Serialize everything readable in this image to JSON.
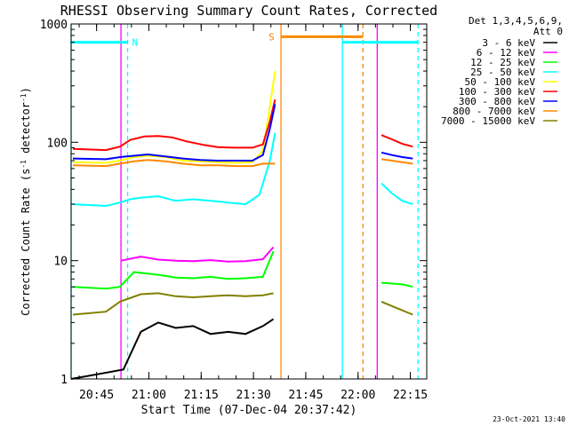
{
  "chart_data": {
    "type": "line",
    "title": "RHESSI Observing Summary Count Rates, Corrected",
    "xlabel": "Start Time (07-Dec-04 20:37:42)",
    "ylabel": "Corrected Count Rate (s⁻¹ detector⁻¹)",
    "ylabel_main": "Corrected Count Rate (s",
    "ylabel_sup1": "-1",
    "ylabel_mid": " detector",
    "ylabel_sup2": "-1",
    "ylabel_end": ")",
    "yscale": "log",
    "ylim": [
      1,
      1000
    ],
    "x_unit": "minutes after 20:37:42",
    "xlim": [
      0,
      102
    ],
    "xticks": [
      {
        "t": 7.3,
        "label": "20:45"
      },
      {
        "t": 22.3,
        "label": "21:00"
      },
      {
        "t": 37.3,
        "label": "21:15"
      },
      {
        "t": 52.3,
        "label": "21:30"
      },
      {
        "t": 67.3,
        "label": "21:45"
      },
      {
        "t": 82.3,
        "label": "22:00"
      },
      {
        "t": 97.3,
        "label": "22:15"
      }
    ],
    "yticks": [
      {
        "v": 1,
        "label": "1"
      },
      {
        "v": 10,
        "label": "10"
      },
      {
        "v": 100,
        "label": "100"
      },
      {
        "v": 1000,
        "label": "1000"
      }
    ],
    "legend_header": [
      "Det 1,3,4,5,6,9,",
      "Att 0"
    ],
    "legend_position": "right",
    "series": [
      {
        "name": "3 - 6 keV",
        "color": "#000000",
        "points": [
          [
            0,
            1
          ],
          [
            15,
            1.2
          ],
          [
            20,
            2.5
          ],
          [
            25,
            3
          ],
          [
            30,
            2.7
          ],
          [
            35,
            2.8
          ],
          [
            40,
            2.4
          ],
          [
            45,
            2.5
          ],
          [
            50,
            2.4
          ],
          [
            55,
            2.8
          ],
          [
            58,
            3.2
          ]
        ],
        "points_after": []
      },
      {
        "name": "6 - 12 keV",
        "color": "#ff00ff",
        "points": [
          [
            14.3,
            10
          ],
          [
            20,
            10.8
          ],
          [
            25,
            10.2
          ],
          [
            30,
            10
          ],
          [
            35,
            9.9
          ],
          [
            40,
            10.1
          ],
          [
            45,
            9.8
          ],
          [
            50,
            9.9
          ],
          [
            55,
            10.3
          ],
          [
            58,
            13
          ]
        ],
        "points_after": []
      },
      {
        "name": "12 - 25 keV",
        "color": "#00ff00",
        "points": [
          [
            0.5,
            6
          ],
          [
            10,
            5.8
          ],
          [
            14,
            6
          ],
          [
            18,
            8
          ],
          [
            25,
            7.6
          ],
          [
            30,
            7.2
          ],
          [
            35,
            7.1
          ],
          [
            40,
            7.3
          ],
          [
            45,
            7
          ],
          [
            50,
            7.1
          ],
          [
            55,
            7.3
          ],
          [
            58,
            12
          ]
        ],
        "points_after": [
          [
            89,
            6.5
          ],
          [
            95,
            6.3
          ],
          [
            98,
            6
          ]
        ]
      },
      {
        "name": "25 - 50 keV",
        "color": "#00ffff",
        "points": [
          [
            0.5,
            30
          ],
          [
            10,
            29
          ],
          [
            14,
            31
          ],
          [
            17,
            33
          ],
          [
            20,
            34
          ],
          [
            25,
            35
          ],
          [
            30,
            32
          ],
          [
            35,
            33
          ],
          [
            40,
            32
          ],
          [
            45,
            31
          ],
          [
            50,
            30
          ],
          [
            54,
            36
          ],
          [
            57,
            70
          ],
          [
            58.5,
            120
          ]
        ],
        "points_after": [
          [
            89,
            45
          ],
          [
            92,
            37
          ],
          [
            95,
            32
          ],
          [
            98,
            30
          ]
        ]
      },
      {
        "name": "50 - 100 keV",
        "color": "#ffff00",
        "points": [
          [
            0.5,
            68
          ],
          [
            10,
            67
          ],
          [
            14,
            70
          ],
          [
            18,
            75
          ],
          [
            22,
            77
          ],
          [
            27,
            75
          ],
          [
            32,
            70
          ],
          [
            37,
            69
          ],
          [
            42,
            68
          ],
          [
            47,
            67
          ],
          [
            52,
            68
          ],
          [
            55,
            85
          ],
          [
            57,
            200
          ],
          [
            58.5,
            400
          ]
        ],
        "points_after": []
      },
      {
        "name": "100 - 300 keV",
        "color": "#ff0000",
        "points": [
          [
            0.5,
            88
          ],
          [
            10,
            86
          ],
          [
            14,
            92
          ],
          [
            17,
            105
          ],
          [
            21,
            112
          ],
          [
            25,
            113
          ],
          [
            29,
            110
          ],
          [
            33,
            102
          ],
          [
            38,
            95
          ],
          [
            42,
            91
          ],
          [
            47,
            90
          ],
          [
            52,
            90
          ],
          [
            55,
            96
          ],
          [
            57,
            150
          ],
          [
            58.5,
            230
          ]
        ],
        "points_after": [
          [
            89,
            115
          ],
          [
            92,
            106
          ],
          [
            95,
            97
          ],
          [
            98,
            92
          ]
        ]
      },
      {
        "name": "300 - 800 keV",
        "color": "#0000ff",
        "points": [
          [
            0.5,
            73
          ],
          [
            10,
            72
          ],
          [
            14,
            75
          ],
          [
            18,
            77
          ],
          [
            22,
            79
          ],
          [
            27,
            76
          ],
          [
            32,
            73
          ],
          [
            37,
            71
          ],
          [
            42,
            70
          ],
          [
            47,
            70
          ],
          [
            52,
            70
          ],
          [
            55,
            78
          ],
          [
            57,
            130
          ],
          [
            58.5,
            210
          ]
        ],
        "points_after": [
          [
            89,
            82
          ],
          [
            92,
            78
          ],
          [
            95,
            75
          ],
          [
            98,
            73
          ]
        ]
      },
      {
        "name": "800 - 7000 keV",
        "color": "#ff8800",
        "points": [
          [
            0.5,
            64
          ],
          [
            10,
            63
          ],
          [
            14,
            66
          ],
          [
            18,
            69
          ],
          [
            22,
            71
          ],
          [
            27,
            69
          ],
          [
            32,
            66
          ],
          [
            37,
            64
          ],
          [
            42,
            64
          ],
          [
            47,
            63
          ],
          [
            52,
            63
          ],
          [
            55,
            66
          ],
          [
            57,
            66
          ],
          [
            58.5,
            66
          ]
        ],
        "points_after": [
          [
            89,
            72
          ],
          [
            92,
            70
          ],
          [
            95,
            68
          ],
          [
            98,
            66
          ]
        ]
      },
      {
        "name": "7000 - 15000 keV",
        "color": "#808000",
        "points": [
          [
            0.5,
            3.5
          ],
          [
            10,
            3.7
          ],
          [
            14,
            4.5
          ],
          [
            20,
            5.2
          ],
          [
            25,
            5.3
          ],
          [
            30,
            5
          ],
          [
            35,
            4.9
          ],
          [
            40,
            5
          ],
          [
            45,
            5.1
          ],
          [
            50,
            5
          ],
          [
            55,
            5.1
          ],
          [
            58,
            5.3
          ]
        ],
        "points_after": [
          [
            89,
            4.5
          ],
          [
            95,
            3.8
          ],
          [
            98,
            3.5
          ]
        ]
      }
    ],
    "flag_bars": [
      {
        "label": "N",
        "color": "#00ffff",
        "t0": 0,
        "t1": 16.2,
        "value": 700
      },
      {
        "label": "",
        "color": "#00ffff",
        "t0": 77.8,
        "t1": 99.5,
        "value": 700
      },
      {
        "label": "S",
        "color": "#ff8800",
        "t0": 60.2,
        "t1": 83.7,
        "value": 780
      }
    ],
    "vertical_markers": [
      {
        "t": 0,
        "color": "#00ffff",
        "style": "solid"
      },
      {
        "t": 16.2,
        "color": "#00ffff",
        "style": "dashed"
      },
      {
        "t": 60.2,
        "color": "#ff8800",
        "style": "solid"
      },
      {
        "t": 77.8,
        "color": "#00ffff",
        "style": "solid"
      },
      {
        "t": 83.7,
        "color": "#ff8800",
        "style": "dashed"
      },
      {
        "t": 99.5,
        "color": "#00ffff",
        "style": "dashed"
      },
      {
        "t": 14.3,
        "color": "#ff00ff",
        "style": "solid"
      },
      {
        "t": 87.8,
        "color": "#ff00ff",
        "style": "solid"
      }
    ],
    "footer_timestamp": "23-Oct-2021 13:40"
  }
}
